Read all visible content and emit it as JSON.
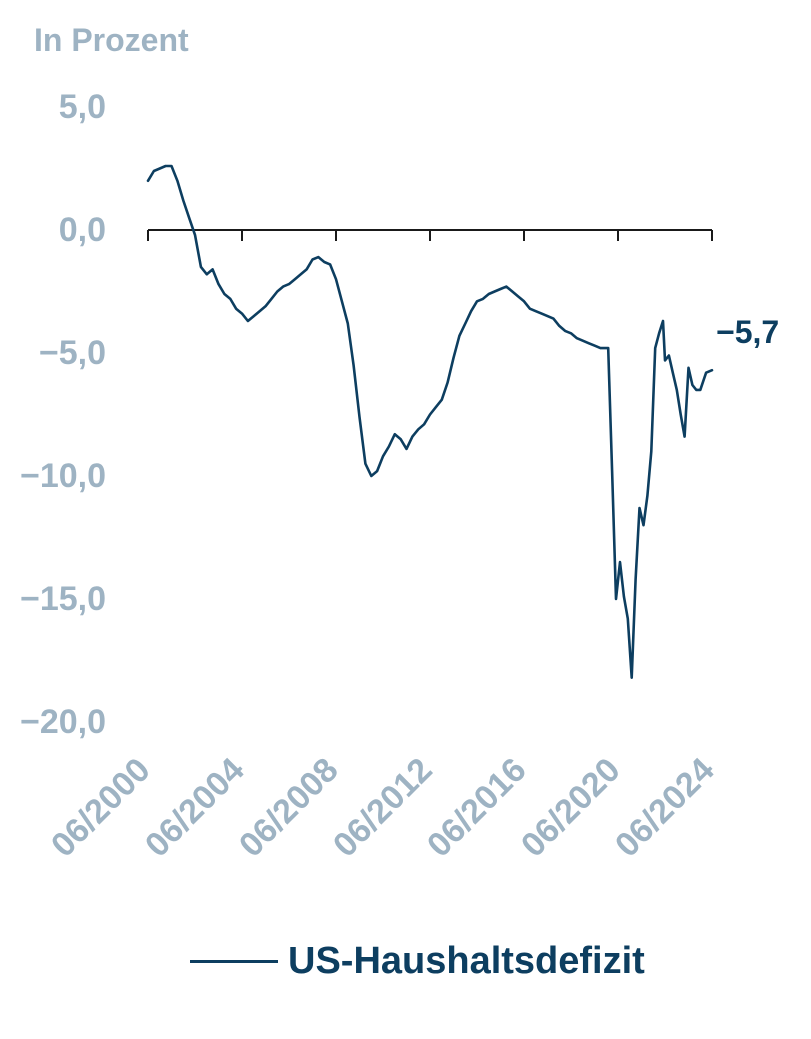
{
  "colors": {
    "axis_text": "#9eb3c3",
    "series": "#0d3e60",
    "axis_line": "#1a1a1a"
  },
  "chart_data": {
    "type": "line",
    "unit_label": "In Prozent",
    "ylim": [
      -20,
      5
    ],
    "yticks": [
      5,
      0,
      -5,
      -10,
      -15,
      -20
    ],
    "ytick_labels": [
      "5,0",
      "0,0",
      "−5,0",
      "−10,0",
      "−15,0",
      "−20,0"
    ],
    "xlim": [
      "2000-06",
      "2024-06"
    ],
    "xticks": [
      "2000-06",
      "2004-06",
      "2008-06",
      "2012-06",
      "2016-06",
      "2020-06",
      "2024-06"
    ],
    "xtick_labels": [
      "06/2000",
      "06/2004",
      "06/2008",
      "06/2012",
      "06/2016",
      "06/2020",
      "06/2024"
    ],
    "grid": false,
    "legend_position": "bottom",
    "end_label": "−5,7",
    "series": [
      {
        "name": "US-Haushaltsdefizit",
        "points": [
          [
            "2000-06",
            2.0
          ],
          [
            "2000-09",
            2.4
          ],
          [
            "2000-12",
            2.5
          ],
          [
            "2001-03",
            2.6
          ],
          [
            "2001-06",
            2.6
          ],
          [
            "2001-09",
            2.0
          ],
          [
            "2001-12",
            1.2
          ],
          [
            "2002-03",
            0.5
          ],
          [
            "2002-06",
            -0.2
          ],
          [
            "2002-09",
            -1.5
          ],
          [
            "2002-12",
            -1.8
          ],
          [
            "2003-03",
            -1.6
          ],
          [
            "2003-06",
            -2.2
          ],
          [
            "2003-09",
            -2.6
          ],
          [
            "2003-12",
            -2.8
          ],
          [
            "2004-03",
            -3.2
          ],
          [
            "2004-06",
            -3.4
          ],
          [
            "2004-09",
            -3.7
          ],
          [
            "2004-12",
            -3.5
          ],
          [
            "2005-03",
            -3.3
          ],
          [
            "2005-06",
            -3.1
          ],
          [
            "2005-09",
            -2.8
          ],
          [
            "2005-12",
            -2.5
          ],
          [
            "2006-03",
            -2.3
          ],
          [
            "2006-06",
            -2.2
          ],
          [
            "2006-09",
            -2.0
          ],
          [
            "2006-12",
            -1.8
          ],
          [
            "2007-03",
            -1.6
          ],
          [
            "2007-06",
            -1.2
          ],
          [
            "2007-09",
            -1.1
          ],
          [
            "2007-12",
            -1.3
          ],
          [
            "2008-03",
            -1.4
          ],
          [
            "2008-06",
            -2.0
          ],
          [
            "2008-09",
            -2.9
          ],
          [
            "2008-12",
            -3.8
          ],
          [
            "2009-03",
            -5.5
          ],
          [
            "2009-06",
            -7.6
          ],
          [
            "2009-09",
            -9.5
          ],
          [
            "2009-12",
            -10.0
          ],
          [
            "2010-03",
            -9.8
          ],
          [
            "2010-06",
            -9.2
          ],
          [
            "2010-09",
            -8.8
          ],
          [
            "2010-12",
            -8.3
          ],
          [
            "2011-03",
            -8.5
          ],
          [
            "2011-06",
            -8.9
          ],
          [
            "2011-09",
            -8.4
          ],
          [
            "2011-12",
            -8.1
          ],
          [
            "2012-03",
            -7.9
          ],
          [
            "2012-06",
            -7.5
          ],
          [
            "2012-09",
            -7.2
          ],
          [
            "2012-12",
            -6.9
          ],
          [
            "2013-03",
            -6.2
          ],
          [
            "2013-06",
            -5.2
          ],
          [
            "2013-09",
            -4.3
          ],
          [
            "2013-12",
            -3.8
          ],
          [
            "2014-03",
            -3.3
          ],
          [
            "2014-06",
            -2.9
          ],
          [
            "2014-09",
            -2.8
          ],
          [
            "2014-12",
            -2.6
          ],
          [
            "2015-03",
            -2.5
          ],
          [
            "2015-06",
            -2.4
          ],
          [
            "2015-09",
            -2.3
          ],
          [
            "2015-12",
            -2.5
          ],
          [
            "2016-03",
            -2.7
          ],
          [
            "2016-06",
            -2.9
          ],
          [
            "2016-09",
            -3.2
          ],
          [
            "2016-12",
            -3.3
          ],
          [
            "2017-03",
            -3.4
          ],
          [
            "2017-06",
            -3.5
          ],
          [
            "2017-09",
            -3.6
          ],
          [
            "2017-12",
            -3.9
          ],
          [
            "2018-03",
            -4.1
          ],
          [
            "2018-06",
            -4.2
          ],
          [
            "2018-09",
            -4.4
          ],
          [
            "2018-12",
            -4.5
          ],
          [
            "2019-03",
            -4.6
          ],
          [
            "2019-06",
            -4.7
          ],
          [
            "2019-09",
            -4.8
          ],
          [
            "2019-12",
            -4.8
          ],
          [
            "2020-01",
            -4.8
          ],
          [
            "2020-03",
            -9.8
          ],
          [
            "2020-05",
            -15.0
          ],
          [
            "2020-07",
            -13.5
          ],
          [
            "2020-09",
            -14.9
          ],
          [
            "2020-11",
            -15.8
          ],
          [
            "2021-01",
            -18.2
          ],
          [
            "2021-03",
            -14.2
          ],
          [
            "2021-05",
            -11.3
          ],
          [
            "2021-07",
            -12.0
          ],
          [
            "2021-09",
            -10.8
          ],
          [
            "2021-11",
            -9.0
          ],
          [
            "2022-01",
            -4.8
          ],
          [
            "2022-03",
            -4.2
          ],
          [
            "2022-05",
            -3.7
          ],
          [
            "2022-06",
            -5.3
          ],
          [
            "2022-08",
            -5.1
          ],
          [
            "2022-10",
            -5.8
          ],
          [
            "2022-12",
            -6.5
          ],
          [
            "2023-02",
            -7.5
          ],
          [
            "2023-04",
            -8.4
          ],
          [
            "2023-06",
            -5.6
          ],
          [
            "2023-08",
            -6.3
          ],
          [
            "2023-10",
            -6.5
          ],
          [
            "2023-12",
            -6.5
          ],
          [
            "2024-03",
            -5.8
          ],
          [
            "2024-06",
            -5.7
          ]
        ]
      }
    ]
  }
}
